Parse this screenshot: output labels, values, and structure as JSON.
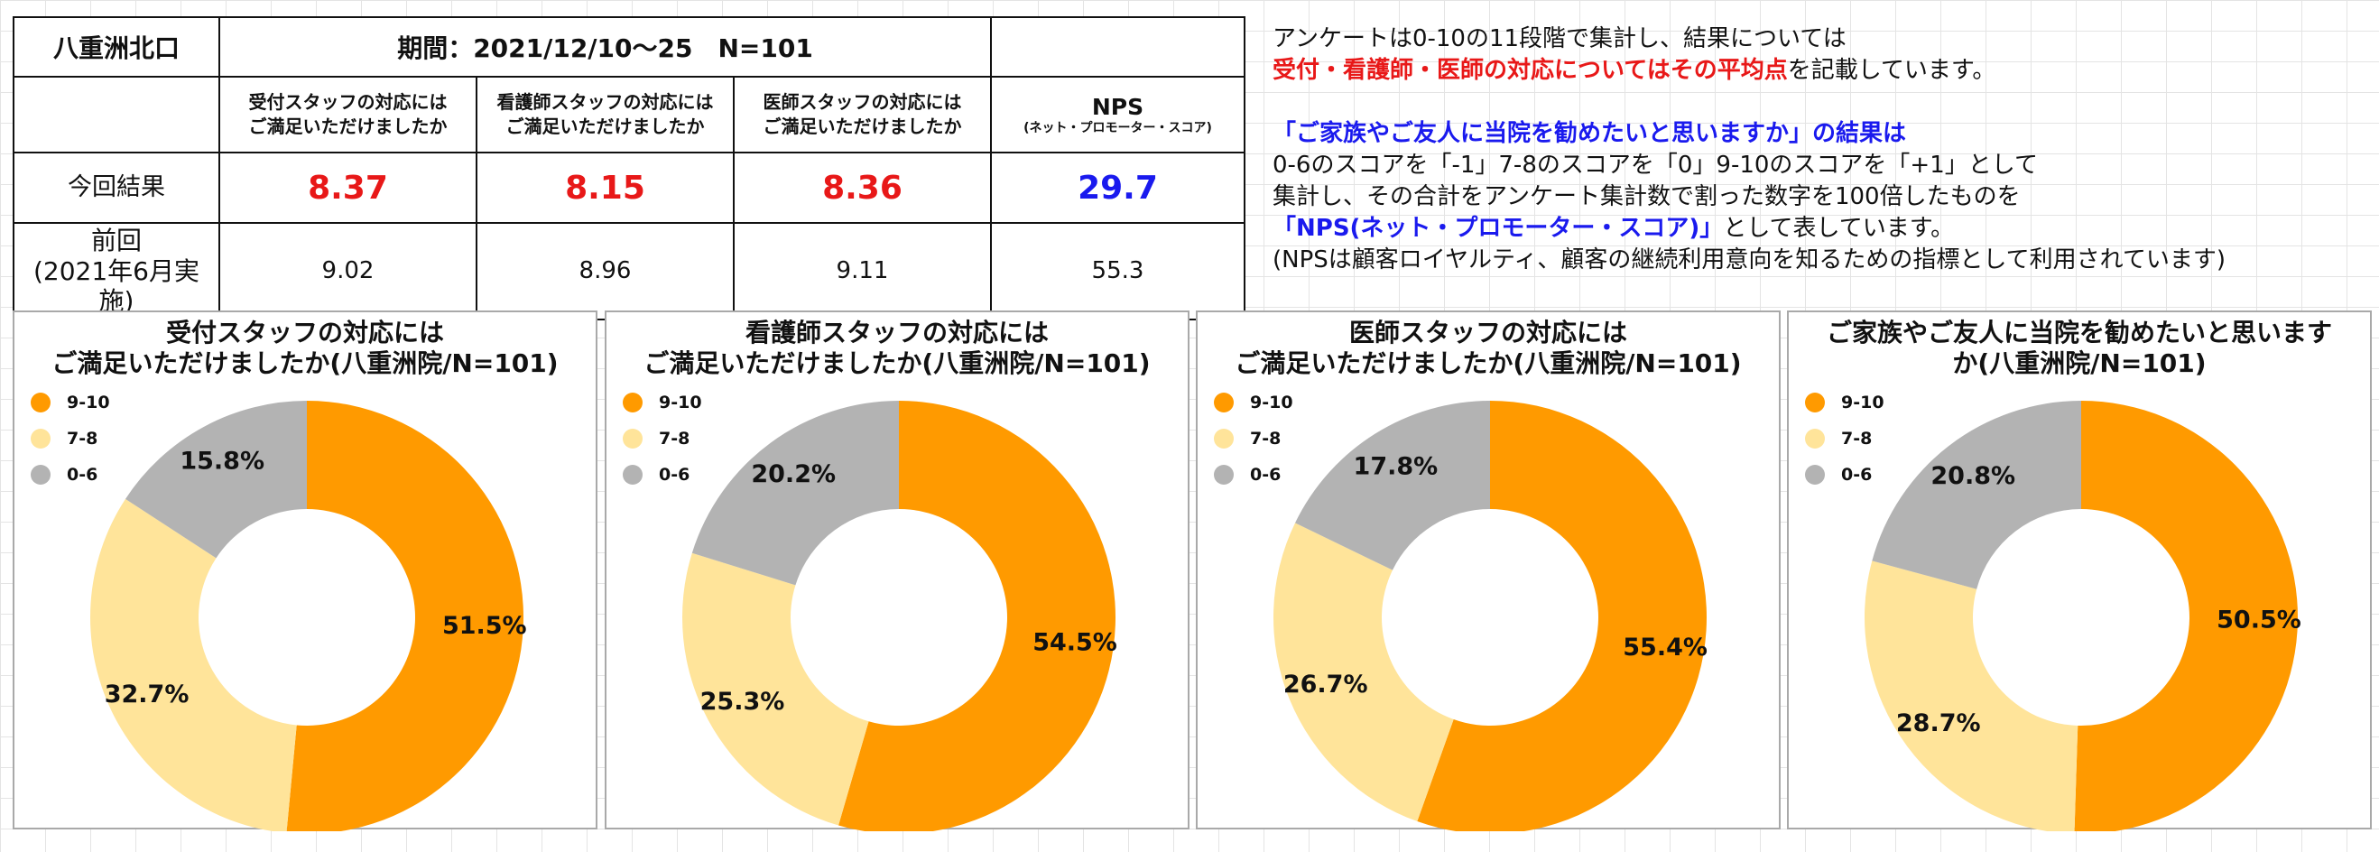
{
  "summary": {
    "site": "八重洲北口",
    "period": "期間：2021/12/10〜25　N=101",
    "headers": [
      [
        "受付スタッフの対応には",
        "ご満足いただけましたか"
      ],
      [
        "看護師スタッフの対応には",
        "ご満足いただけましたか"
      ],
      [
        "医師スタッフの対応には",
        "ご満足いただけましたか"
      ]
    ],
    "nps_header": "NPS",
    "nps_subheader": "(ネット・プロモーター・スコア)",
    "current_label": "今回結果",
    "current": [
      "8.37",
      "8.15",
      "8.36",
      "29.7"
    ],
    "previous_label": [
      "前回",
      "(2021年6月実施)"
    ],
    "previous": [
      "9.02",
      "8.96",
      "9.11",
      "55.3"
    ]
  },
  "notes": {
    "line1": "アンケートは0-10の11段階で集計し、結果については",
    "line2_red": "受付・看護師・医師の対応についてはその平均点",
    "line2_rest": "を記載しています。",
    "line3_blue": "「ご家族やご友人に当院を勧めたいと思いますか」の結果は",
    "line4": "0-6のスコアを「-1」7-8のスコアを「0」9-10のスコアを「+1」として",
    "line5": "集計し、その合計をアンケート集計数で割った数字を100倍したものを",
    "line6_blue": "「NPS(ネット・プロモーター・スコア)」",
    "line6_rest": "として表しています。",
    "line7": "(NPSは顧客ロイヤルティ、顧客の継続利用意向を知るための指標として利用されています)"
  },
  "colors": {
    "9-10": "#ff9a00",
    "7-8": "#ffe49a",
    "0-6": "#b3b3b3"
  },
  "chart_data": [
    {
      "type": "pie",
      "title": [
        "受付スタッフの対応には",
        "ご満足いただけましたか(八重洲院/N=101)"
      ],
      "categories": [
        "9-10",
        "7-8",
        "0-6"
      ],
      "values": [
        51.5,
        32.7,
        15.8
      ],
      "labels": [
        "51.5%",
        "32.7%",
        "15.8%"
      ],
      "legend": "top-left"
    },
    {
      "type": "pie",
      "title": [
        "看護師スタッフの対応には",
        "ご満足いただけましたか(八重洲院/N=101)"
      ],
      "categories": [
        "9-10",
        "7-8",
        "0-6"
      ],
      "values": [
        54.5,
        25.3,
        20.2
      ],
      "labels": [
        "54.5%",
        "25.3%",
        "20.2%"
      ],
      "legend": "top-left"
    },
    {
      "type": "pie",
      "title": [
        "医師スタッフの対応には",
        "ご満足いただけましたか(八重洲院/N=101)"
      ],
      "categories": [
        "9-10",
        "7-8",
        "0-6"
      ],
      "values": [
        55.4,
        26.7,
        17.8
      ],
      "labels": [
        "55.4%",
        "26.7%",
        "17.8%"
      ],
      "legend": "top-left"
    },
    {
      "type": "pie",
      "title": [
        "ご家族やご友人に当院を勧めたいと思います",
        "か(八重洲院/N=101)"
      ],
      "categories": [
        "9-10",
        "7-8",
        "0-6"
      ],
      "values": [
        50.5,
        28.7,
        20.8
      ],
      "labels": [
        "50.5%",
        "28.7%",
        "20.8%"
      ],
      "legend": "top-left"
    }
  ]
}
